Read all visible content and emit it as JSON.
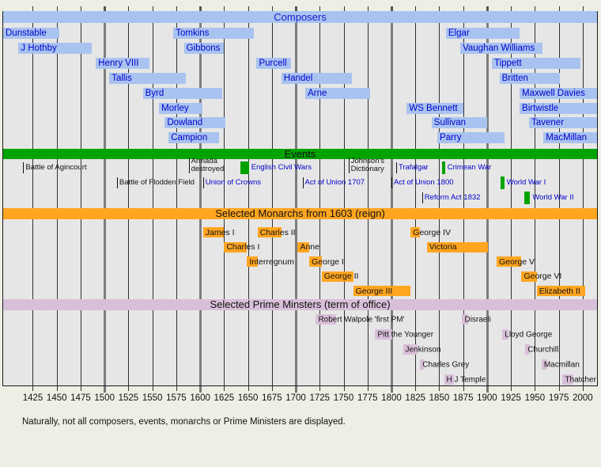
{
  "caption": "Naturally, not all composers, events, monarchs or Prime Ministers are displayed.",
  "colors": {
    "page_bg": "#efeee4",
    "plot_bg": "#e6e6e6",
    "grid_minor": "#303030",
    "grid_century": "#7d7d7d",
    "link_blue": "#0000cc",
    "text_black": "#111111",
    "composer_bar_blue": "#a9c3f0",
    "event_green": "#00a300",
    "monarch_orange": "#ffa520",
    "pm_thistle": "#d8bfd8"
  },
  "chart_data": {
    "type": "bar",
    "variant": "gantt-timeline",
    "title": "",
    "xlabel": "",
    "ylabel": "",
    "grid": true,
    "axis": {
      "unit": "year",
      "min_year": 1394,
      "max_year": 2015,
      "ticks": [
        1425,
        1450,
        1475,
        1500,
        1525,
        1550,
        1575,
        1600,
        1625,
        1650,
        1675,
        1700,
        1725,
        1750,
        1775,
        1800,
        1825,
        1850,
        1875,
        1900,
        1925,
        1950,
        1975,
        2000
      ],
      "century_lines": [
        1500,
        1600,
        1700,
        1800,
        1900
      ]
    },
    "sections": [
      {
        "id": "composers",
        "header": "Composers",
        "header_bg": "#a9c3f0",
        "header_text_color": "#1a1acc",
        "bar_color": "#a9c3f0",
        "label_color": "#0000cc",
        "items": [
          {
            "label": "Dunstable",
            "start": 1390,
            "end": 1453,
            "row": 0
          },
          {
            "label": "J Hothby",
            "start": 1410,
            "end": 1487,
            "row": 1
          },
          {
            "label": "Henry VIII",
            "start": 1491,
            "end": 1547,
            "row": 2
          },
          {
            "label": "Tallis",
            "start": 1505,
            "end": 1585,
            "row": 3
          },
          {
            "label": "Byrd",
            "start": 1540,
            "end": 1623,
            "row": 4
          },
          {
            "label": "Morley",
            "start": 1557,
            "end": 1602,
            "row": 5
          },
          {
            "label": "Dowland",
            "start": 1563,
            "end": 1626,
            "row": 6
          },
          {
            "label": "Campion",
            "start": 1567,
            "end": 1620,
            "row": 7
          },
          {
            "label": "Tomkins",
            "start": 1572,
            "end": 1656,
            "row": 0
          },
          {
            "label": "Gibbons",
            "start": 1583,
            "end": 1625,
            "row": 1
          },
          {
            "label": "Purcell",
            "start": 1659,
            "end": 1695,
            "row": 2
          },
          {
            "label": "Handel",
            "start": 1685,
            "end": 1759,
            "row": 3
          },
          {
            "label": "Arne",
            "start": 1710,
            "end": 1778,
            "row": 4
          },
          {
            "label": "WS Bennett",
            "start": 1816,
            "end": 1875,
            "row": 5
          },
          {
            "label": "Sullivan",
            "start": 1842,
            "end": 1900,
            "row": 6
          },
          {
            "label": "Parry",
            "start": 1848,
            "end": 1918,
            "row": 7
          },
          {
            "label": "Elgar",
            "start": 1857,
            "end": 1934,
            "row": 0
          },
          {
            "label": "Vaughan Williams",
            "start": 1872,
            "end": 1958,
            "row": 1
          },
          {
            "label": "Tippett",
            "start": 1905,
            "end": 1998,
            "row": 2
          },
          {
            "label": "Britten",
            "start": 1913,
            "end": 1976,
            "row": 3
          },
          {
            "label": "Maxwell Davies",
            "start": 1934,
            "end": 2015,
            "row": 4
          },
          {
            "label": "Birtwistle",
            "start": 1934,
            "end": 2015,
            "row": 5
          },
          {
            "label": "Tavener",
            "start": 1944,
            "end": 2015,
            "row": 6
          },
          {
            "label": "MacMillan",
            "start": 1959,
            "end": 2015,
            "row": 7
          }
        ]
      },
      {
        "id": "events",
        "header": "Events",
        "header_bg": "#00a300",
        "header_text_color": "#111111",
        "box_color": "#00a300",
        "items": [
          {
            "label": "Battle of Agincourt",
            "year": 1415,
            "row": 0,
            "link": false
          },
          {
            "label": "Battle of Flodden Field",
            "year": 1513,
            "row": 1,
            "link": false
          },
          {
            "label": "Armada\ndestroyed",
            "year": 1588,
            "row": 0,
            "link": false,
            "two_line": true
          },
          {
            "label": "Union of Crowns",
            "year": 1603,
            "row": 1,
            "link": true
          },
          {
            "label": "English Civil Wars",
            "start": 1642,
            "end": 1651,
            "row": 0,
            "link": true
          },
          {
            "label": "Act of Union 1707",
            "year": 1707,
            "row": 1,
            "link": true
          },
          {
            "label": "Johnson's\nDictionary",
            "year": 1755,
            "row": 0,
            "link": false,
            "two_line": true
          },
          {
            "label": "Act of Union 1800",
            "year": 1800,
            "row": 1,
            "link": true
          },
          {
            "label": "Trafalgar",
            "year": 1805,
            "row": 0,
            "link": true
          },
          {
            "label": "Reform Act 1832",
            "year": 1832,
            "row": 2,
            "link": true
          },
          {
            "label": "Crimean War",
            "start": 1853,
            "end": 1856,
            "row": 0,
            "link": true
          },
          {
            "label": "World War I",
            "start": 1914,
            "end": 1918,
            "row": 1,
            "link": true
          },
          {
            "label": "World War II",
            "start": 1939,
            "end": 1945,
            "row": 2,
            "link": true
          }
        ]
      },
      {
        "id": "monarchs",
        "header": "Selected Monarchs from 1603 (reign)",
        "header_bg": "#ffa520",
        "header_text_color": "#111111",
        "bar_color": "#ffa520",
        "label_color": "#111111",
        "items": [
          {
            "label": "James I",
            "start": 1603,
            "end": 1625,
            "row": 0
          },
          {
            "label": "Charles I",
            "start": 1625,
            "end": 1649,
            "row": 1
          },
          {
            "label": "Interregnum",
            "start": 1649,
            "end": 1660,
            "row": 2
          },
          {
            "label": "Charles II",
            "start": 1660,
            "end": 1685,
            "row": 0
          },
          {
            "label": "Anne",
            "start": 1702,
            "end": 1714,
            "row": 1
          },
          {
            "label": "George I",
            "start": 1714,
            "end": 1727,
            "row": 2
          },
          {
            "label": "George II",
            "start": 1727,
            "end": 1760,
            "row": 3
          },
          {
            "label": "George III",
            "start": 1760,
            "end": 1820,
            "row": 4
          },
          {
            "label": "George IV",
            "start": 1820,
            "end": 1830,
            "row": 0
          },
          {
            "label": "Victoria",
            "start": 1837,
            "end": 1901,
            "row": 1
          },
          {
            "label": "George V",
            "start": 1910,
            "end": 1936,
            "row": 2
          },
          {
            "label": "George VI",
            "start": 1936,
            "end": 1952,
            "row": 3
          },
          {
            "label": "Elizabeth II",
            "start": 1952,
            "end": 2003,
            "row": 4
          }
        ]
      },
      {
        "id": "pms",
        "header": "Selected Prime Minsters (term of office)",
        "header_bg": "#d8bfd8",
        "header_text_color": "#111111",
        "bar_color": "#d8bfd8",
        "label_color": "#111111",
        "items": [
          {
            "label": "Robert Walpole 'first PM'",
            "start": 1721,
            "end": 1742,
            "row": 0
          },
          {
            "label": "Pitt the Younger",
            "start": 1783,
            "end": 1801,
            "row": 1
          },
          {
            "label": "Jenkinson",
            "start": 1812,
            "end": 1827,
            "row": 2
          },
          {
            "label": "Charles Grey",
            "start": 1830,
            "end": 1834,
            "row": 3
          },
          {
            "label": "H J Temple",
            "start": 1855,
            "end": 1865,
            "row": 4
          },
          {
            "label": "Disraeli",
            "start": 1874,
            "end": 1880,
            "row": 0
          },
          {
            "label": "Lloyd George",
            "start": 1916,
            "end": 1922,
            "row": 1
          },
          {
            "label": "Churchill",
            "start": 1940,
            "end": 1945,
            "row": 2
          },
          {
            "label": "Macmillan",
            "start": 1957,
            "end": 1963,
            "row": 3
          },
          {
            "label": "Thatcher",
            "start": 1979,
            "end": 1990,
            "row": 4
          }
        ]
      }
    ]
  }
}
